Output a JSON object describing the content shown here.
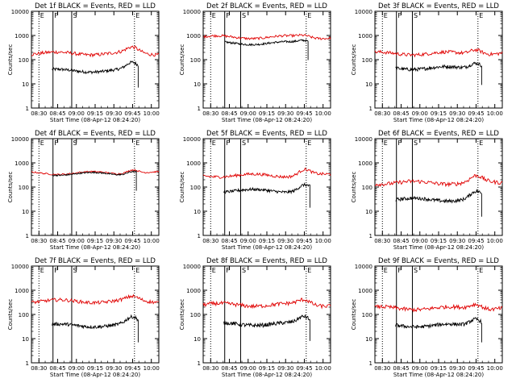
{
  "chart_data": [
    {
      "type": "line",
      "title": "Det 1f BLACK = Events, RED = LLD",
      "markers": {
        "E1": 0,
        "F": 0.75,
        "S": 1.75,
        "E2": 5.1
      },
      "events": {
        "start": 0.7,
        "level": 35,
        "humpAmp": 0.3,
        "endDrop": 5.3,
        "noise": 0.06
      },
      "lld": {
        "level": 180,
        "humpAmp": 0.22,
        "noise": 0.07
      }
    },
    {
      "type": "line",
      "title": "Det 2f BLACK = Events, RED = LLD",
      "markers": {
        "E1": 0,
        "F": 0.75,
        "S": 1.6,
        "E2": 5.1
      },
      "events": {
        "start": 0.75,
        "level": 480,
        "humpAmp": 0.12,
        "endDrop": 5.2,
        "noise": 0.04
      },
      "lld": {
        "level": 850,
        "humpAmp": 0.08,
        "noise": 0.05
      }
    },
    {
      "type": "line",
      "title": "Det 3f BLACK = Events, RED = LLD",
      "markers": {
        "E1": 0,
        "F": 0.75,
        "S": 1.6,
        "E2": 5.1
      },
      "events": {
        "start": 0.7,
        "level": 45,
        "humpAmp": 0.25,
        "endDrop": 5.3,
        "noise": 0.07
      },
      "lld": {
        "level": 180,
        "humpAmp": 0.2,
        "noise": 0.07
      }
    },
    {
      "type": "line",
      "title": "Det 4f BLACK = Events, RED = LLD",
      "markers": {
        "E1": 0,
        "F": 0.75,
        "S": 1.75,
        "E2": 5.1
      },
      "events": {
        "start": 0.7,
        "level": 350,
        "humpAmp": 0.15,
        "endDrop": 5.2,
        "noise": 0.03
      },
      "lld": {
        "level": 380,
        "humpAmp": 0.18,
        "noise": 0.03
      }
    },
    {
      "type": "line",
      "title": "Det 5f BLACK = Events, RED = LLD",
      "markers": {
        "E1": 0,
        "F": 0.75,
        "S": 1.6,
        "E2": 5.1
      },
      "events": {
        "start": 0.7,
        "level": 70,
        "humpAmp": 0.25,
        "endDrop": 5.3,
        "noise": 0.06
      },
      "lld": {
        "level": 300,
        "humpAmp": 0.25,
        "noise": 0.06
      }
    },
    {
      "type": "line",
      "title": "Det 6f BLACK = Events, RED = LLD",
      "markers": {
        "E1": 0,
        "F": 0.75,
        "S": 1.6,
        "E2": 5.1
      },
      "events": {
        "start": 0.7,
        "level": 30,
        "humpAmp": 0.3,
        "endDrop": 5.3,
        "noise": 0.07
      },
      "lld": {
        "level": 150,
        "humpAmp": 0.25,
        "noise": 0.08
      }
    },
    {
      "type": "line",
      "title": "Det 7f BLACK = Events, RED = LLD",
      "markers": {
        "E1": 0,
        "F": 0.75,
        "S": 1.75,
        "E2": 5.1
      },
      "events": {
        "start": 0.7,
        "level": 35,
        "humpAmp": 0.3,
        "endDrop": 5.3,
        "noise": 0.07
      },
      "lld": {
        "level": 350,
        "humpAmp": 0.15,
        "noise": 0.07
      }
    },
    {
      "type": "line",
      "title": "Det 8f BLACK = Events, RED = LLD",
      "markers": {
        "E1": 0,
        "F": 0.75,
        "S": 1.6,
        "E2": 5.1
      },
      "events": {
        "start": 0.7,
        "level": 40,
        "humpAmp": 0.3,
        "endDrop": 5.3,
        "noise": 0.08
      },
      "lld": {
        "level": 250,
        "humpAmp": 0.2,
        "noise": 0.08
      }
    },
    {
      "type": "line",
      "title": "Det 9f BLACK = Events, RED = LLD",
      "markers": {
        "E1": 0,
        "F": 0.75,
        "S": 1.6,
        "E2": 5.1
      },
      "events": {
        "start": 0.7,
        "level": 35,
        "humpAmp": 0.3,
        "endDrop": 5.3,
        "noise": 0.07
      },
      "lld": {
        "level": 180,
        "humpAmp": 0.2,
        "noise": 0.08
      }
    }
  ],
  "xaxis": {
    "label": "Start Time (08-Apr-12 08:24:20)",
    "ticks": [
      "08:30",
      "08:45",
      "09:00",
      "09:15",
      "09:30",
      "09:45",
      "10:00"
    ],
    "range": [
      -0.4,
      6.4
    ]
  },
  "yaxis": {
    "label": "Counts/sec",
    "scale": "log",
    "ticks": [
      "1",
      "10",
      "100",
      "1000",
      "10000"
    ],
    "range": [
      1,
      10000
    ]
  },
  "marker_labels": {
    "E1": "E",
    "F": "F",
    "S": "S",
    "E2": "E"
  },
  "colors": {
    "events": "#000000",
    "lld": "#e00000",
    "axes": "#000000"
  }
}
